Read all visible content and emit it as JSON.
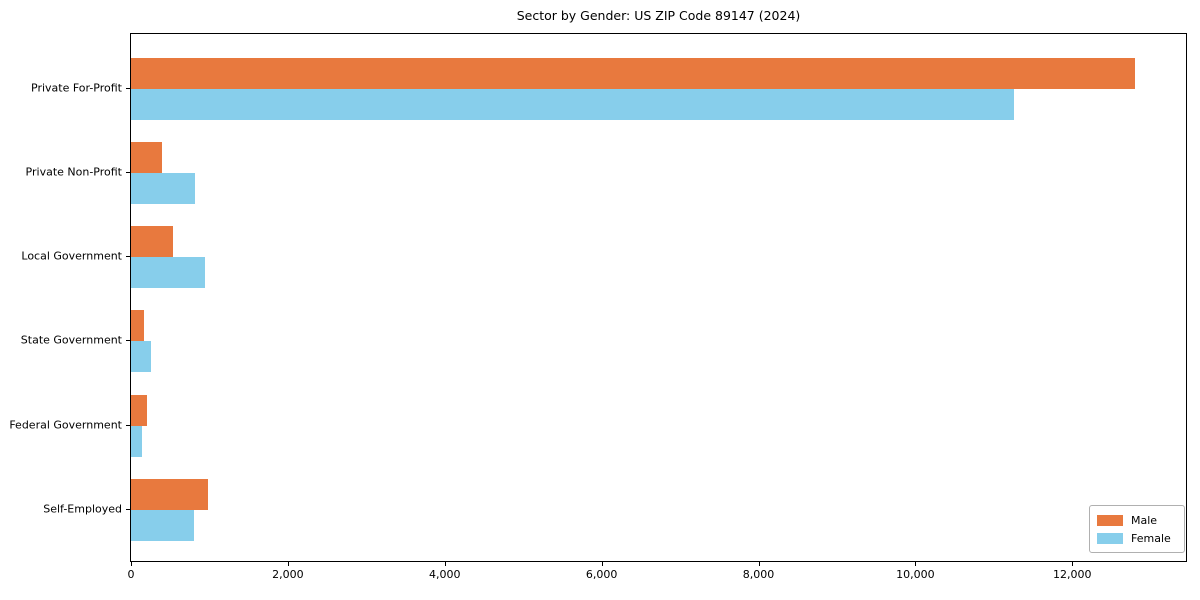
{
  "chart_data": {
    "type": "bar",
    "orientation": "horizontal",
    "title": "Sector by Gender: US ZIP Code 89147 (2024)",
    "categories": [
      "Private For-Profit",
      "Private Non-Profit",
      "Local Government",
      "State Government",
      "Federal Government",
      "Self-Employed"
    ],
    "series": [
      {
        "name": "Male",
        "color": "#E8793E",
        "values": [
          12800,
          400,
          530,
          160,
          210,
          980
        ]
      },
      {
        "name": "Female",
        "color": "#87CEEB",
        "values": [
          11260,
          810,
          940,
          260,
          135,
          805
        ]
      }
    ],
    "xlabel": "",
    "ylabel": "",
    "xlim": [
      0,
      13450
    ],
    "x_ticks": [
      0,
      2000,
      4000,
      6000,
      8000,
      10000,
      12000
    ],
    "x_tick_labels": [
      "0",
      "2,000",
      "4,000",
      "6,000",
      "8,000",
      "10,000",
      "12,000"
    ],
    "grid": false,
    "legend": {
      "position": "lower right",
      "entries": [
        "Male",
        "Female"
      ]
    },
    "colors": {
      "male": "#E8793E",
      "female": "#87CEEB",
      "axis": "#000000",
      "background": "#ffffff",
      "legend_border": "#b0b0b0"
    }
  }
}
